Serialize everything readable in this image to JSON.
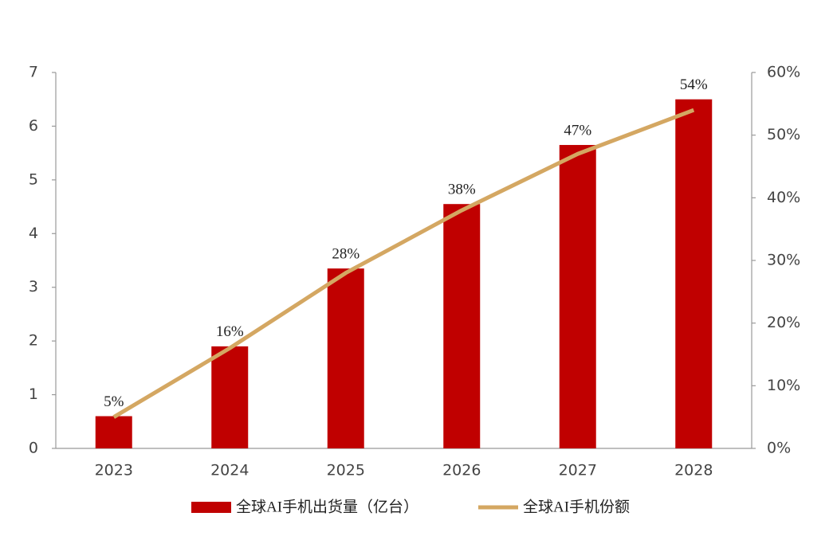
{
  "chart_data": {
    "type": "bar-line",
    "categories": [
      "2023",
      "2024",
      "2025",
      "2026",
      "2027",
      "2028"
    ],
    "series": [
      {
        "name": "全球AI手机出货量（亿台）",
        "type": "bar",
        "color": "#c00000",
        "values": [
          0.6,
          1.9,
          3.35,
          4.55,
          5.65,
          6.5
        ]
      },
      {
        "name": "全球AI手机份额",
        "type": "line",
        "axis": "y2",
        "color": "#d4a762",
        "values": [
          5,
          16,
          28,
          38,
          47,
          54
        ],
        "value_labels": [
          "5%",
          "16%",
          "28%",
          "38%",
          "47%",
          "54%"
        ]
      }
    ],
    "ylim": [
      0,
      7
    ],
    "yticks": [
      0,
      1,
      2,
      3,
      4,
      5,
      6,
      7
    ],
    "y2lim": [
      0,
      60
    ],
    "y2ticks": [
      {
        "value": 0,
        "label": "0%"
      },
      {
        "value": 10,
        "label": "10%"
      },
      {
        "value": 20,
        "label": "20%"
      },
      {
        "value": 30,
        "label": "30%"
      },
      {
        "value": 40,
        "label": "40%"
      },
      {
        "value": 50,
        "label": "50%"
      },
      {
        "value": 60,
        "label": "60%"
      }
    ],
    "legend": "bottom"
  }
}
